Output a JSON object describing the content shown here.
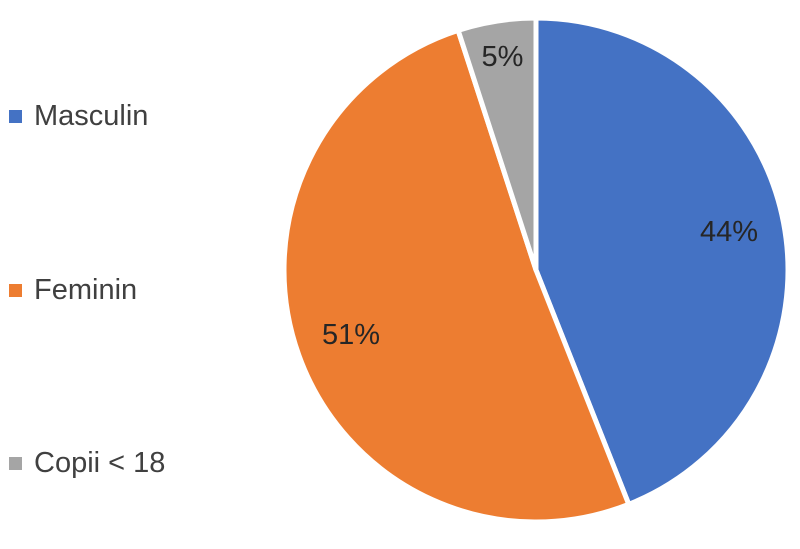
{
  "chart_data": {
    "type": "pie",
    "title": "",
    "categories": [
      "Masculin",
      "Feminin",
      "Copii < 18"
    ],
    "values": [
      44,
      51,
      5
    ],
    "value_labels": [
      "44%",
      "51%",
      "5%"
    ],
    "colors": [
      "#4472C4",
      "#ED7D31",
      "#A5A5A5"
    ],
    "legend_position": "left",
    "start_angle": "top, clockwise"
  }
}
